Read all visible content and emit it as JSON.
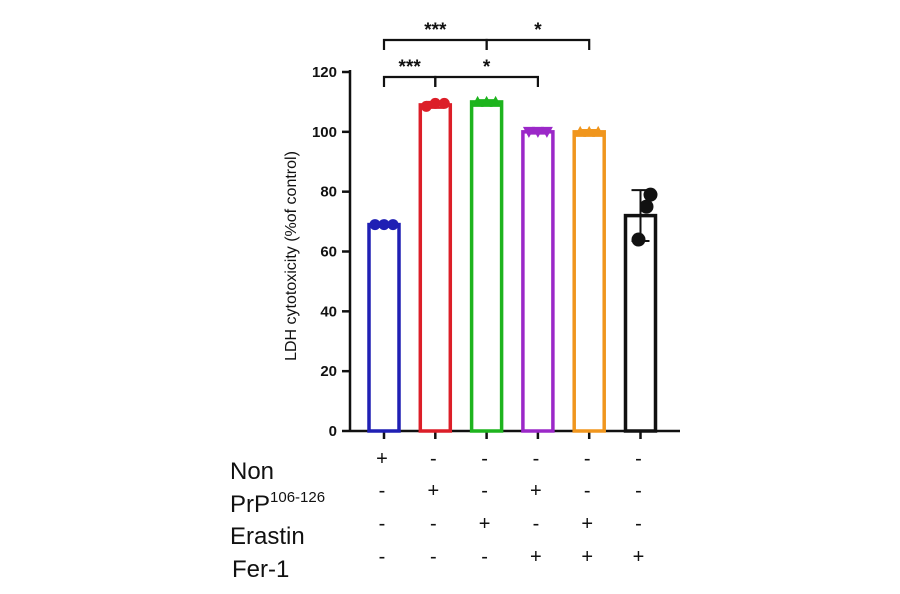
{
  "chart_data": {
    "type": "bar",
    "title": "",
    "xlabel": "",
    "ylabel": "LDH cytotoxicity (%of control)",
    "ylim": [
      0,
      120
    ],
    "yticks": [
      0,
      20,
      40,
      60,
      80,
      100,
      120
    ],
    "grid": false,
    "bars": [
      {
        "value": 69,
        "error": 0.6,
        "color": "#1f1fb4",
        "points": [
          69,
          69,
          69
        ]
      },
      {
        "value": 109,
        "error": 1.0,
        "color": "#dc1e28",
        "points": [
          108.5,
          109.5,
          109.5
        ]
      },
      {
        "value": 110,
        "error": 0.6,
        "color": "#1eb41e",
        "points": [
          110,
          110,
          110
        ]
      },
      {
        "value": 100,
        "error": 0.6,
        "color": "#9b28c8",
        "points": [
          100,
          100,
          100
        ]
      },
      {
        "value": 100,
        "error": 0.6,
        "color": "#f0961e",
        "points": [
          100,
          100,
          100
        ]
      },
      {
        "value": 72,
        "error": 8.5,
        "color": "#111111",
        "points": [
          64,
          75,
          79
        ]
      }
    ],
    "significance": [
      {
        "from": 0,
        "to": 2,
        "label": "***"
      },
      {
        "from": 2,
        "to": 4,
        "label": "*"
      },
      {
        "from": 0,
        "to": 1,
        "label": "***"
      },
      {
        "from": 1,
        "to": 3,
        "label": "*"
      }
    ],
    "conditions": [
      {
        "name": "Non",
        "sup": "",
        "marks": [
          "+",
          "-",
          "-",
          "-",
          "-",
          "-"
        ]
      },
      {
        "name": "PrP",
        "sup": "106-126",
        "marks": [
          "-",
          "+",
          "-",
          "+",
          "-",
          "-"
        ]
      },
      {
        "name": "Erastin",
        "sup": "",
        "marks": [
          "-",
          "-",
          "+",
          "-",
          "+",
          "-"
        ]
      },
      {
        "name": "Fer-1",
        "sup": "",
        "marks": [
          "-",
          "-",
          "-",
          "+",
          "+",
          "+"
        ]
      }
    ]
  }
}
